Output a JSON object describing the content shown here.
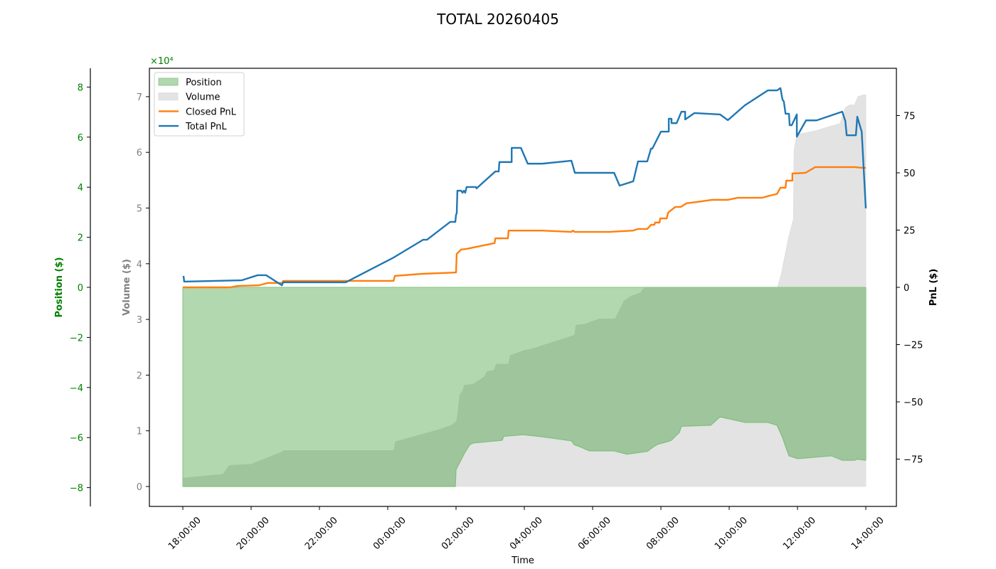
{
  "chart_data": {
    "type": "line",
    "title": "TOTAL 20260405",
    "xlabel": "Time",
    "x_ticks": [
      "18:00:00",
      "20:00:00",
      "22:00:00",
      "00:00:00",
      "02:00:00",
      "04:00:00",
      "06:00:00",
      "08:00:00",
      "10:00:00",
      "12:00:00",
      "14:00:00"
    ],
    "x_unit": "hours since 18:00:00",
    "axes": {
      "position": {
        "label": "Position ($)",
        "color": "#008000",
        "ticks": [
          -8,
          -6,
          -4,
          -2,
          0,
          2,
          4,
          6,
          8
        ],
        "offset_label": "×10⁴",
        "ylim": [
          -8.8,
          8.7
        ]
      },
      "volume": {
        "label": "Volume ($)",
        "color": "#808080",
        "ticks": [
          0,
          1,
          2,
          3,
          4,
          5,
          6,
          7
        ],
        "ylim": [
          -0.35,
          7.5
        ]
      },
      "pnl": {
        "label": "PnL ($)",
        "color": "#000000",
        "ticks": [
          -75,
          -50,
          -25,
          0,
          25,
          50,
          75
        ],
        "ylim": [
          -95,
          95
        ]
      }
    },
    "legend": {
      "position": "upper left",
      "entries": [
        {
          "label": "Position",
          "kind": "fill",
          "color": "#b2d8b0"
        },
        {
          "label": "Volume",
          "kind": "fill",
          "color": "#e3e3e3"
        },
        {
          "label": "Closed PnL",
          "kind": "line",
          "color": "#ff7f0e"
        },
        {
          "label": "Total PnL",
          "kind": "line",
          "color": "#1f77b4"
        }
      ]
    },
    "series": [
      {
        "name": "Total PnL",
        "axis": "pnl",
        "type": "line",
        "color": "#1f77b4",
        "points": [
          [
            0.02,
            5
          ],
          [
            0.04,
            2.5
          ],
          [
            1.73,
            3.1
          ],
          [
            2.19,
            5.3
          ],
          [
            2.44,
            5.3
          ],
          [
            2.9,
            0.9
          ],
          [
            2.94,
            2.2
          ],
          [
            4.77,
            2.2
          ],
          [
            6.17,
            13
          ],
          [
            7.04,
            20.8
          ],
          [
            7.15,
            20.8
          ],
          [
            7.83,
            28.6
          ],
          [
            7.98,
            28.6
          ],
          [
            8.0,
            31.7
          ],
          [
            8.02,
            32.3
          ],
          [
            8.04,
            42.2
          ],
          [
            8.15,
            42.2
          ],
          [
            8.19,
            41.3
          ],
          [
            8.23,
            42.2
          ],
          [
            8.27,
            41.3
          ],
          [
            8.31,
            43.8
          ],
          [
            8.58,
            43.8
          ],
          [
            8.6,
            43.2
          ],
          [
            9.15,
            50.6
          ],
          [
            9.25,
            50.6
          ],
          [
            9.27,
            54.7
          ],
          [
            9.63,
            54.7
          ],
          [
            9.63,
            60.9
          ],
          [
            9.9,
            60.9
          ],
          [
            10.1,
            54
          ],
          [
            10.52,
            54
          ],
          [
            11.38,
            55.3
          ],
          [
            11.48,
            50
          ],
          [
            12.63,
            50
          ],
          [
            12.79,
            44.4
          ],
          [
            13.19,
            46.3
          ],
          [
            13.33,
            55
          ],
          [
            13.6,
            55
          ],
          [
            13.71,
            60.6
          ],
          [
            13.75,
            60.6
          ],
          [
            14.0,
            68
          ],
          [
            14.23,
            68
          ],
          [
            14.23,
            73.6
          ],
          [
            14.31,
            73.6
          ],
          [
            14.31,
            71.7
          ],
          [
            14.46,
            71.7
          ],
          [
            14.6,
            76.7
          ],
          [
            14.71,
            76.7
          ],
          [
            14.71,
            73.3
          ],
          [
            14.98,
            76.1
          ],
          [
            15.73,
            75.5
          ],
          [
            15.96,
            73
          ],
          [
            16.46,
            79.5
          ],
          [
            17.13,
            86
          ],
          [
            17.4,
            86
          ],
          [
            17.5,
            87
          ],
          [
            17.56,
            82
          ],
          [
            17.6,
            81.1
          ],
          [
            17.65,
            75.8
          ],
          [
            17.75,
            75.8
          ],
          [
            17.77,
            70.8
          ],
          [
            17.83,
            70.8
          ],
          [
            17.94,
            74.2
          ],
          [
            17.98,
            75.5
          ],
          [
            17.98,
            65.8
          ],
          [
            18.25,
            72.9
          ],
          [
            18.56,
            72.9
          ],
          [
            19.31,
            76.7
          ],
          [
            19.4,
            72.6
          ],
          [
            19.44,
            66.4
          ],
          [
            19.71,
            66.4
          ],
          [
            19.75,
            74.5
          ],
          [
            19.88,
            67.9
          ],
          [
            20.0,
            34.5
          ]
        ]
      },
      {
        "name": "Closed PnL",
        "axis": "pnl",
        "type": "line",
        "color": "#ff7f0e",
        "points": [
          [
            0.0,
            0
          ],
          [
            1.38,
            0
          ],
          [
            1.6,
            0.6
          ],
          [
            2.23,
            0.9
          ],
          [
            2.48,
            1.9
          ],
          [
            2.9,
            1.9
          ],
          [
            2.94,
            2.8
          ],
          [
            6.17,
            2.8
          ],
          [
            6.21,
            5
          ],
          [
            7.0,
            5.9
          ],
          [
            8.0,
            6.5
          ],
          [
            8.02,
            14.6
          ],
          [
            8.15,
            16.5
          ],
          [
            8.31,
            16.8
          ],
          [
            8.9,
            18.6
          ],
          [
            9.13,
            19.3
          ],
          [
            9.15,
            21.4
          ],
          [
            9.52,
            21.4
          ],
          [
            9.54,
            24.8
          ],
          [
            10.5,
            24.8
          ],
          [
            11.38,
            24.2
          ],
          [
            11.42,
            24.8
          ],
          [
            11.48,
            24.2
          ],
          [
            12.48,
            24.2
          ],
          [
            13.19,
            24.8
          ],
          [
            13.33,
            25.5
          ],
          [
            13.6,
            25.5
          ],
          [
            13.71,
            27.3
          ],
          [
            13.81,
            27.3
          ],
          [
            13.83,
            28.3
          ],
          [
            13.96,
            28.3
          ],
          [
            13.98,
            30.1
          ],
          [
            14.17,
            30.1
          ],
          [
            14.21,
            32.6
          ],
          [
            14.42,
            35.1
          ],
          [
            14.58,
            35.1
          ],
          [
            14.75,
            36.7
          ],
          [
            15.06,
            37.3
          ],
          [
            15.5,
            38.2
          ],
          [
            15.96,
            38.2
          ],
          [
            16.25,
            39.1
          ],
          [
            16.96,
            39.1
          ],
          [
            17.13,
            39.8
          ],
          [
            17.4,
            40.8
          ],
          [
            17.5,
            43.5
          ],
          [
            17.65,
            43.5
          ],
          [
            17.67,
            46.6
          ],
          [
            17.85,
            46.6
          ],
          [
            17.85,
            49.7
          ],
          [
            18.23,
            50
          ],
          [
            18.52,
            52.5
          ],
          [
            19.15,
            52.5
          ],
          [
            19.67,
            52.5
          ],
          [
            19.9,
            52.2
          ],
          [
            20.0,
            52.2
          ]
        ]
      },
      {
        "name": "Volume",
        "axis": "volume",
        "type": "area",
        "color": "#e3e3e3",
        "points": [
          [
            0.0,
            0
          ],
          [
            1.38,
            0
          ],
          [
            2.9,
            0
          ],
          [
            6.17,
            0
          ],
          [
            7.98,
            0
          ],
          [
            8.0,
            0.3
          ],
          [
            8.25,
            0.6
          ],
          [
            8.4,
            0.75
          ],
          [
            8.5,
            0.78
          ],
          [
            9.35,
            0.83
          ],
          [
            9.4,
            0.9
          ],
          [
            9.96,
            0.93
          ],
          [
            10.42,
            0.9
          ],
          [
            11.38,
            0.82
          ],
          [
            11.46,
            0.75
          ],
          [
            11.6,
            0.72
          ],
          [
            11.9,
            0.64
          ],
          [
            12.63,
            0.64
          ],
          [
            13.0,
            0.58
          ],
          [
            13.6,
            0.63
          ],
          [
            13.8,
            0.72
          ],
          [
            13.92,
            0.76
          ],
          [
            14.17,
            0.8
          ],
          [
            14.31,
            0.83
          ],
          [
            14.42,
            0.9
          ],
          [
            14.54,
            0.97
          ],
          [
            14.6,
            1.08
          ],
          [
            15.46,
            1.1
          ],
          [
            15.73,
            1.25
          ],
          [
            16.46,
            1.15
          ],
          [
            17.13,
            1.15
          ],
          [
            17.4,
            1.1
          ],
          [
            17.56,
            0.88
          ],
          [
            17.65,
            0.72
          ],
          [
            17.75,
            0.55
          ],
          [
            18.0,
            0.5
          ],
          [
            19.0,
            0.55
          ],
          [
            19.31,
            0.47
          ],
          [
            19.67,
            0.47
          ],
          [
            19.75,
            0.49
          ],
          [
            20.0,
            0.47
          ]
        ],
        "upper": [
          [
            0.0,
            0
          ],
          [
            13.0,
            0
          ],
          [
            13.29,
            0.15
          ],
          [
            13.33,
            0.3
          ],
          [
            13.38,
            0.38
          ],
          [
            13.46,
            0.5
          ],
          [
            13.6,
            0.55
          ],
          [
            13.75,
            0.65
          ],
          [
            13.8,
            0.74
          ],
          [
            14.15,
            0.74
          ],
          [
            14.17,
            1.2
          ],
          [
            14.29,
            1.25
          ],
          [
            14.36,
            1.3
          ],
          [
            14.46,
            1.55
          ],
          [
            14.52,
            1.6
          ],
          [
            14.54,
            1.87
          ],
          [
            14.65,
            1.9
          ],
          [
            14.69,
            2.0
          ],
          [
            14.76,
            2.15
          ],
          [
            14.96,
            2.2
          ],
          [
            14.98,
            2.55
          ],
          [
            15.27,
            2.6
          ],
          [
            15.75,
            2.62
          ],
          [
            15.96,
            2.78
          ],
          [
            16.17,
            2.93
          ],
          [
            16.31,
            3.0
          ],
          [
            16.9,
            3.12
          ],
          [
            17.08,
            3.3
          ],
          [
            17.29,
            3.5
          ],
          [
            17.4,
            3.55
          ],
          [
            17.52,
            3.8
          ],
          [
            17.73,
            4.45
          ],
          [
            17.88,
            4.8
          ],
          [
            17.9,
            6.05
          ],
          [
            17.98,
            6.3
          ],
          [
            18.0,
            6.32
          ],
          [
            18.48,
            6.38
          ],
          [
            19.25,
            6.52
          ],
          [
            19.4,
            6.8
          ],
          [
            19.52,
            6.85
          ],
          [
            19.67,
            6.85
          ],
          [
            19.77,
            7.0
          ],
          [
            19.92,
            7.03
          ],
          [
            20.0,
            7.03
          ]
        ]
      },
      {
        "name": "Position",
        "axis": "position",
        "type": "area",
        "color": "#b2d8b0",
        "points": [
          [
            0.0,
            -7.6
          ],
          [
            1.17,
            -7.45
          ],
          [
            1.35,
            -7.1
          ],
          [
            2.0,
            -7.05
          ],
          [
            2.92,
            -6.55
          ],
          [
            2.94,
            -6.5
          ],
          [
            6.17,
            -6.5
          ],
          [
            6.21,
            -6.15
          ],
          [
            7.42,
            -5.7
          ],
          [
            7.85,
            -5.5
          ],
          [
            8.0,
            -5.35
          ],
          [
            8.04,
            -5.0
          ],
          [
            8.08,
            -4.5
          ],
          [
            8.1,
            -4.3
          ],
          [
            8.19,
            -4.1
          ],
          [
            8.23,
            -3.9
          ],
          [
            8.5,
            -3.85
          ],
          [
            8.83,
            -3.55
          ],
          [
            8.9,
            -3.35
          ],
          [
            9.1,
            -3.3
          ],
          [
            9.17,
            -3.05
          ],
          [
            9.52,
            -3.05
          ],
          [
            9.58,
            -2.7
          ],
          [
            9.71,
            -2.65
          ],
          [
            10.0,
            -2.5
          ],
          [
            10.2,
            -2.45
          ],
          [
            11.0,
            -2.1
          ],
          [
            11.46,
            -1.9
          ],
          [
            11.5,
            -1.5
          ],
          [
            11.79,
            -1.45
          ],
          [
            12.17,
            -1.25
          ],
          [
            12.65,
            -1.25
          ],
          [
            12.9,
            -0.55
          ],
          [
            13.1,
            -0.35
          ],
          [
            13.4,
            -0.2
          ],
          [
            13.5,
            0
          ]
        ],
        "fill_to": 0,
        "negative_edge": true
      }
    ]
  }
}
